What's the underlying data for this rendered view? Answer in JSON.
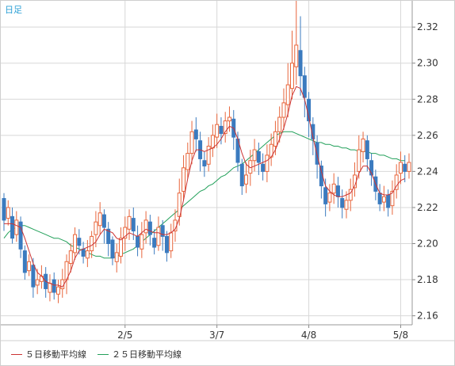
{
  "chart_data": {
    "type": "candlestick",
    "period_label": "日足",
    "x_tick_labels": [
      "2/5",
      "3/7",
      "4/8",
      "5/8"
    ],
    "y_tick_labels": [
      "2.16",
      "2.18",
      "2.20",
      "2.22",
      "2.24",
      "2.26",
      "2.28",
      "2.30",
      "2.32"
    ],
    "ylim": [
      2.155,
      2.335
    ],
    "grid": true,
    "legend_position": "bottom",
    "colors": {
      "up": "#e8663c",
      "down": "#3b7bbf",
      "ma5": "#cc3333",
      "ma25": "#22a05a",
      "grid": "#d8d8d8",
      "background": "#ffffff"
    },
    "series": [
      {
        "name": "５日移動平均線",
        "color": "#cc3333"
      },
      {
        "name": "２５日移動平均線",
        "color": "#22a05a"
      }
    ],
    "candles": [
      [
        2.225,
        2.213,
        2.228,
        2.207
      ],
      [
        2.214,
        2.22,
        2.224,
        2.21
      ],
      [
        2.215,
        2.203,
        2.22,
        2.2
      ],
      [
        2.205,
        2.213,
        2.218,
        2.201
      ],
      [
        2.212,
        2.197,
        2.215,
        2.192
      ],
      [
        2.196,
        2.184,
        2.199,
        2.18
      ],
      [
        2.185,
        2.19,
        2.194,
        2.182
      ],
      [
        2.188,
        2.176,
        2.192,
        2.17
      ],
      [
        2.177,
        2.18,
        2.186,
        2.172
      ],
      [
        2.179,
        2.182,
        2.188,
        2.175
      ],
      [
        2.183,
        2.175,
        2.187,
        2.17
      ],
      [
        2.173,
        2.178,
        2.183,
        2.168
      ],
      [
        2.18,
        2.173,
        2.184,
        2.169
      ],
      [
        2.172,
        2.176,
        2.18,
        2.167
      ],
      [
        2.175,
        2.18,
        2.186,
        2.17
      ],
      [
        2.18,
        2.19,
        2.194,
        2.172
      ],
      [
        2.189,
        2.196,
        2.2,
        2.184
      ],
      [
        2.195,
        2.205,
        2.209,
        2.191
      ],
      [
        2.203,
        2.199,
        2.208,
        2.194
      ],
      [
        2.197,
        2.193,
        2.201,
        2.189
      ],
      [
        2.192,
        2.196,
        2.202,
        2.187
      ],
      [
        2.196,
        2.204,
        2.207,
        2.192
      ],
      [
        2.205,
        2.212,
        2.218,
        2.198
      ],
      [
        2.21,
        2.217,
        2.223,
        2.205
      ],
      [
        2.216,
        2.209,
        2.219,
        2.2
      ],
      [
        2.208,
        2.2,
        2.212,
        2.193
      ],
      [
        2.202,
        2.192,
        2.204,
        2.188
      ],
      [
        2.19,
        2.195,
        2.2,
        2.184
      ],
      [
        2.193,
        2.203,
        2.209,
        2.189
      ],
      [
        2.203,
        2.209,
        2.215,
        2.196
      ],
      [
        2.208,
        2.215,
        2.219,
        2.202
      ],
      [
        2.214,
        2.207,
        2.22,
        2.202
      ],
      [
        2.204,
        2.198,
        2.21,
        2.193
      ],
      [
        2.197,
        2.205,
        2.212,
        2.192
      ],
      [
        2.206,
        2.213,
        2.218,
        2.2
      ],
      [
        2.212,
        2.205,
        2.216,
        2.199
      ],
      [
        2.203,
        2.198,
        2.208,
        2.194
      ],
      [
        2.199,
        2.209,
        2.215,
        2.196
      ],
      [
        2.21,
        2.204,
        2.213,
        2.196
      ],
      [
        2.204,
        2.195,
        2.207,
        2.19
      ],
      [
        2.196,
        2.206,
        2.211,
        2.192
      ],
      [
        2.207,
        2.213,
        2.219,
        2.201
      ],
      [
        2.215,
        2.228,
        2.236,
        2.21
      ],
      [
        2.229,
        2.242,
        2.249,
        2.224
      ],
      [
        2.241,
        2.25,
        2.256,
        2.236
      ],
      [
        2.25,
        2.262,
        2.268,
        2.244
      ],
      [
        2.263,
        2.258,
        2.27,
        2.251
      ],
      [
        2.257,
        2.247,
        2.262,
        2.24
      ],
      [
        2.246,
        2.243,
        2.251,
        2.237
      ],
      [
        2.244,
        2.254,
        2.259,
        2.24
      ],
      [
        2.253,
        2.26,
        2.266,
        2.248
      ],
      [
        2.259,
        2.266,
        2.272,
        2.253
      ],
      [
        2.265,
        2.261,
        2.27,
        2.255
      ],
      [
        2.261,
        2.268,
        2.273,
        2.256
      ],
      [
        2.268,
        2.27,
        2.276,
        2.262
      ],
      [
        2.269,
        2.259,
        2.274,
        2.252
      ],
      [
        2.258,
        2.245,
        2.262,
        2.24
      ],
      [
        2.244,
        2.232,
        2.247,
        2.227
      ],
      [
        2.233,
        2.238,
        2.245,
        2.228
      ],
      [
        2.239,
        2.246,
        2.252,
        2.232
      ],
      [
        2.246,
        2.252,
        2.258,
        2.24
      ],
      [
        2.251,
        2.245,
        2.256,
        2.238
      ],
      [
        2.244,
        2.24,
        2.25,
        2.235
      ],
      [
        2.24,
        2.249,
        2.255,
        2.234
      ],
      [
        2.248,
        2.255,
        2.261,
        2.243
      ],
      [
        2.254,
        2.262,
        2.268,
        2.249
      ],
      [
        2.262,
        2.27,
        2.276,
        2.256
      ],
      [
        2.27,
        2.278,
        2.286,
        2.263
      ],
      [
        2.277,
        2.288,
        2.3,
        2.27
      ],
      [
        2.286,
        2.3,
        2.318,
        2.28
      ],
      [
        2.298,
        2.31,
        2.335,
        2.288
      ],
      [
        2.307,
        2.293,
        2.326,
        2.282
      ],
      [
        2.293,
        2.281,
        2.298,
        2.27
      ],
      [
        2.28,
        2.268,
        2.284,
        2.259
      ],
      [
        2.266,
        2.258,
        2.27,
        2.249
      ],
      [
        2.256,
        2.244,
        2.26,
        2.236
      ],
      [
        2.243,
        2.232,
        2.246,
        2.225
      ],
      [
        2.231,
        2.222,
        2.236,
        2.215
      ],
      [
        2.223,
        2.228,
        2.233,
        2.218
      ],
      [
        2.228,
        2.233,
        2.239,
        2.222
      ],
      [
        2.232,
        2.226,
        2.237,
        2.22
      ],
      [
        2.225,
        2.22,
        2.23,
        2.214
      ],
      [
        2.219,
        2.224,
        2.229,
        2.214
      ],
      [
        2.224,
        2.23,
        2.236,
        2.218
      ],
      [
        2.231,
        2.238,
        2.245,
        2.226
      ],
      [
        2.24,
        2.252,
        2.26,
        2.236
      ],
      [
        2.251,
        2.258,
        2.262,
        2.245
      ],
      [
        2.257,
        2.247,
        2.26,
        2.24
      ],
      [
        2.246,
        2.238,
        2.25,
        2.232
      ],
      [
        2.237,
        2.229,
        2.241,
        2.224
      ],
      [
        2.228,
        2.222,
        2.233,
        2.218
      ],
      [
        2.223,
        2.226,
        2.232,
        2.218
      ],
      [
        2.227,
        2.22,
        2.23,
        2.215
      ],
      [
        2.221,
        2.229,
        2.235,
        2.216
      ],
      [
        2.23,
        2.238,
        2.244,
        2.225
      ],
      [
        2.239,
        2.245,
        2.251,
        2.233
      ],
      [
        2.244,
        2.24,
        2.249,
        2.234
      ],
      [
        2.24,
        2.245,
        2.25,
        2.236
      ]
    ],
    "ma5": [
      2.211,
      2.211,
      2.211,
      2.21,
      2.209,
      2.203,
      2.196,
      2.189,
      2.184,
      2.182,
      2.179,
      2.178,
      2.177,
      2.177,
      2.176,
      2.18,
      2.185,
      2.192,
      2.196,
      2.197,
      2.198,
      2.199,
      2.201,
      2.205,
      2.208,
      2.207,
      2.206,
      2.203,
      2.202,
      2.204,
      2.206,
      2.205,
      2.204,
      2.206,
      2.208,
      2.207,
      2.206,
      2.206,
      2.205,
      2.205,
      2.206,
      2.208,
      2.214,
      2.224,
      2.236,
      2.246,
      2.252,
      2.252,
      2.251,
      2.252,
      2.253,
      2.255,
      2.258,
      2.262,
      2.265,
      2.264,
      2.258,
      2.25,
      2.244,
      2.242,
      2.243,
      2.244,
      2.245,
      2.246,
      2.248,
      2.252,
      2.258,
      2.264,
      2.272,
      2.282,
      2.287,
      2.286,
      2.28,
      2.27,
      2.259,
      2.249,
      2.24,
      2.232,
      2.229,
      2.227,
      2.226,
      2.226,
      2.227,
      2.228,
      2.232,
      2.239,
      2.243,
      2.243,
      2.239,
      2.233,
      2.228,
      2.227,
      2.227,
      2.228,
      2.232,
      2.235,
      2.236
    ],
    "ma25": [
      2.203,
      2.206,
      2.208,
      2.209,
      2.21,
      2.21,
      2.209,
      2.208,
      2.207,
      2.206,
      2.205,
      2.204,
      2.203,
      2.203,
      2.202,
      2.201,
      2.199,
      2.198,
      2.197,
      2.196,
      2.195,
      2.194,
      2.193,
      2.193,
      2.192,
      2.192,
      2.192,
      2.193,
      2.194,
      2.195,
      2.196,
      2.197,
      2.199,
      2.201,
      2.203,
      2.205,
      2.207,
      2.209,
      2.211,
      2.213,
      2.215,
      2.217,
      2.219,
      2.221,
      2.223,
      2.225,
      2.227,
      2.229,
      2.23,
      2.232,
      2.233,
      2.235,
      2.237,
      2.238,
      2.24,
      2.242,
      2.243,
      2.244,
      2.246,
      2.248,
      2.25,
      2.252,
      2.254,
      2.256,
      2.258,
      2.26,
      2.261,
      2.262,
      2.262,
      2.262,
      2.261,
      2.26,
      2.259,
      2.258,
      2.257,
      2.256,
      2.256,
      2.255,
      2.255,
      2.254,
      2.254,
      2.253,
      2.253,
      2.252,
      2.252,
      2.251,
      2.251,
      2.251,
      2.25,
      2.25,
      2.249,
      2.249,
      2.248,
      2.247,
      2.247,
      2.246,
      2.246
    ]
  }
}
